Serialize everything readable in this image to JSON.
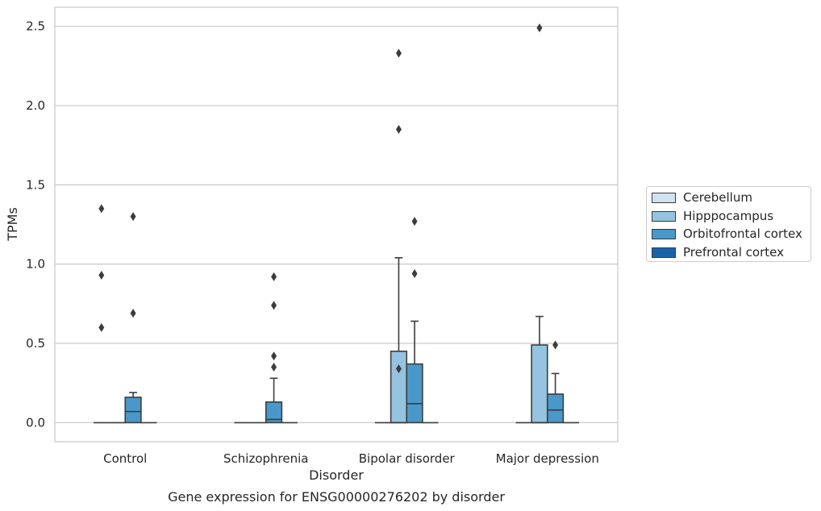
{
  "chart_data": {
    "type": "box",
    "title": "Gene expression for ENSG00000276202 by disorder",
    "xlabel": "Disorder",
    "ylabel": "TPMs",
    "ylim": [
      -0.12,
      2.62
    ],
    "yticks": [
      0.0,
      0.5,
      1.0,
      1.5,
      2.0,
      2.5
    ],
    "ytick_labels": [
      "0.0",
      "0.5",
      "1.0",
      "1.5",
      "2.0",
      "2.5"
    ],
    "grid": "horizontal",
    "legend_position": "outside-right",
    "categories": [
      "Control",
      "Schizophrenia",
      "Bipolar disorder",
      "Major depression"
    ],
    "series": [
      {
        "name": "Cerebellum",
        "color": "#d0e1f2",
        "boxes": [
          {
            "q1": 0,
            "median": 0,
            "q3": 0,
            "whisker_low": 0,
            "whisker_high": 0,
            "outliers": [
              0.6,
              0.93,
              1.35
            ]
          },
          {
            "q1": 0,
            "median": 0,
            "q3": 0,
            "whisker_low": 0,
            "whisker_high": 0,
            "outliers": []
          },
          {
            "q1": 0,
            "median": 0,
            "q3": 0,
            "whisker_low": 0,
            "whisker_high": 0,
            "outliers": []
          },
          {
            "q1": 0,
            "median": 0,
            "q3": 0,
            "whisker_low": 0,
            "whisker_high": 0,
            "outliers": []
          }
        ]
      },
      {
        "name": "Hipppocampus",
        "color": "#94c4df",
        "boxes": [
          {
            "q1": 0,
            "median": 0,
            "q3": 0,
            "whisker_low": 0,
            "whisker_high": 0,
            "outliers": []
          },
          {
            "q1": 0,
            "median": 0,
            "q3": 0,
            "whisker_low": 0,
            "whisker_high": 0,
            "outliers": []
          },
          {
            "q1": 0,
            "median": 0,
            "q3": 0.45,
            "whisker_low": 0,
            "whisker_high": 1.04,
            "outliers": [
              0.34,
              1.85,
              2.33
            ]
          },
          {
            "q1": 0,
            "median": 0,
            "q3": 0.49,
            "whisker_low": 0,
            "whisker_high": 0.67,
            "outliers": [
              2.49
            ]
          }
        ]
      },
      {
        "name": "Orbitofrontal cortex",
        "color": "#4a98c9",
        "boxes": [
          {
            "q1": 0,
            "median": 0.07,
            "q3": 0.16,
            "whisker_low": 0,
            "whisker_high": 0.19,
            "outliers": [
              0.69,
              1.3
            ]
          },
          {
            "q1": 0,
            "median": 0.02,
            "q3": 0.13,
            "whisker_low": 0,
            "whisker_high": 0.28,
            "outliers": [
              0.35,
              0.42,
              0.74,
              0.92
            ]
          },
          {
            "q1": 0,
            "median": 0.12,
            "q3": 0.37,
            "whisker_low": 0,
            "whisker_high": 0.64,
            "outliers": [
              0.94,
              1.27
            ]
          },
          {
            "q1": 0,
            "median": 0.08,
            "q3": 0.18,
            "whisker_low": 0,
            "whisker_high": 0.31,
            "outliers": [
              0.49
            ]
          }
        ]
      },
      {
        "name": "Prefrontal cortex",
        "color": "#1764ab",
        "boxes": [
          {
            "q1": 0,
            "median": 0,
            "q3": 0,
            "whisker_low": 0,
            "whisker_high": 0,
            "outliers": []
          },
          {
            "q1": 0,
            "median": 0,
            "q3": 0,
            "whisker_low": 0,
            "whisker_high": 0,
            "outliers": []
          },
          {
            "q1": 0,
            "median": 0,
            "q3": 0,
            "whisker_low": 0,
            "whisker_high": 0,
            "outliers": []
          },
          {
            "q1": 0,
            "median": 0,
            "q3": 0,
            "whisker_low": 0,
            "whisker_high": 0,
            "outliers": []
          }
        ]
      }
    ]
  }
}
